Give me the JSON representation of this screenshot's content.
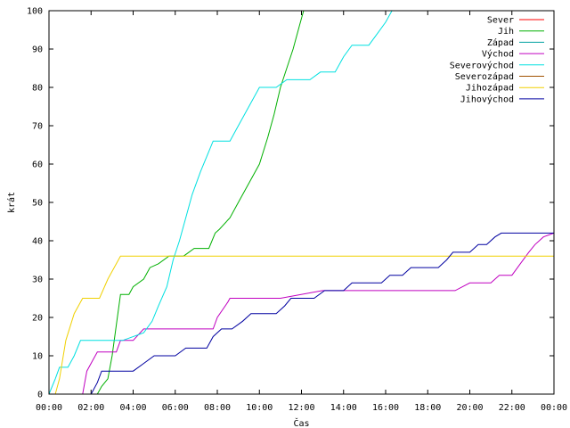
{
  "chart_data": {
    "type": "line",
    "xlabel": "Čas",
    "ylabel": "krát",
    "xlim": [
      0,
      24
    ],
    "ylim": [
      0,
      100
    ],
    "grid": false,
    "legend_position": "top-right",
    "x_ticks": [
      {
        "v": 0,
        "label": "00:00"
      },
      {
        "v": 2,
        "label": "02:00"
      },
      {
        "v": 4,
        "label": "04:00"
      },
      {
        "v": 6,
        "label": "06:00"
      },
      {
        "v": 8,
        "label": "08:00"
      },
      {
        "v": 10,
        "label": "10:00"
      },
      {
        "v": 12,
        "label": "12:00"
      },
      {
        "v": 14,
        "label": "14:00"
      },
      {
        "v": 16,
        "label": "16:00"
      },
      {
        "v": 18,
        "label": "18:00"
      },
      {
        "v": 20,
        "label": "20:00"
      },
      {
        "v": 22,
        "label": "22:00"
      },
      {
        "v": 24,
        "label": "00:00"
      }
    ],
    "y_ticks": [
      0,
      10,
      20,
      30,
      40,
      50,
      60,
      70,
      80,
      90,
      100
    ],
    "series": [
      {
        "name": "Sever",
        "color": "#ff0000",
        "points": []
      },
      {
        "name": "Jih",
        "color": "#00b000",
        "points": [
          [
            2.3,
            0
          ],
          [
            2.5,
            2
          ],
          [
            2.8,
            4
          ],
          [
            3.0,
            10
          ],
          [
            3.2,
            18
          ],
          [
            3.4,
            26
          ],
          [
            3.8,
            26
          ],
          [
            4.0,
            28
          ],
          [
            4.5,
            30
          ],
          [
            4.8,
            33
          ],
          [
            5.2,
            34
          ],
          [
            5.7,
            36
          ],
          [
            6.4,
            36
          ],
          [
            6.9,
            38
          ],
          [
            7.6,
            38
          ],
          [
            7.9,
            42
          ],
          [
            8.1,
            43
          ],
          [
            8.6,
            46
          ],
          [
            9.0,
            50
          ],
          [
            9.3,
            53
          ],
          [
            9.6,
            56
          ],
          [
            10.0,
            60
          ],
          [
            10.4,
            67
          ],
          [
            10.7,
            73
          ],
          [
            11.0,
            80
          ],
          [
            11.3,
            85
          ],
          [
            11.6,
            90
          ],
          [
            11.9,
            96
          ],
          [
            12.1,
            100
          ]
        ]
      },
      {
        "name": "Západ",
        "color": "#00a0a0",
        "points": []
      },
      {
        "name": "Východ",
        "color": "#c000c0",
        "points": [
          [
            0.0,
            0
          ],
          [
            1.6,
            0
          ],
          [
            1.8,
            6
          ],
          [
            2.1,
            9
          ],
          [
            2.3,
            11
          ],
          [
            3.2,
            11
          ],
          [
            3.4,
            14
          ],
          [
            4.0,
            14
          ],
          [
            4.5,
            17
          ],
          [
            7.8,
            17
          ],
          [
            8.0,
            20
          ],
          [
            8.5,
            24
          ],
          [
            8.6,
            25
          ],
          [
            11.0,
            25
          ],
          [
            13.0,
            27
          ],
          [
            15.0,
            27
          ],
          [
            19.3,
            27
          ],
          [
            20.0,
            29
          ],
          [
            21.0,
            29
          ],
          [
            21.4,
            31
          ],
          [
            22.0,
            31
          ],
          [
            22.4,
            34
          ],
          [
            22.8,
            37
          ],
          [
            23.1,
            39
          ],
          [
            23.5,
            41
          ],
          [
            24.0,
            42
          ]
        ]
      },
      {
        "name": "Severovýchod",
        "color": "#00e0e0",
        "points": [
          [
            0.0,
            0
          ],
          [
            0.3,
            4
          ],
          [
            0.5,
            7
          ],
          [
            0.9,
            7
          ],
          [
            1.2,
            10
          ],
          [
            1.5,
            14
          ],
          [
            3.5,
            14
          ],
          [
            4.5,
            16
          ],
          [
            4.9,
            19
          ],
          [
            5.2,
            23
          ],
          [
            5.6,
            28
          ],
          [
            5.9,
            35
          ],
          [
            6.2,
            40
          ],
          [
            6.5,
            46
          ],
          [
            6.8,
            52
          ],
          [
            7.2,
            58
          ],
          [
            7.5,
            62
          ],
          [
            7.8,
            66
          ],
          [
            8.6,
            66
          ],
          [
            9.0,
            70
          ],
          [
            9.4,
            74
          ],
          [
            9.7,
            77
          ],
          [
            10.0,
            80
          ],
          [
            10.8,
            80
          ],
          [
            11.3,
            82
          ],
          [
            12.4,
            82
          ],
          [
            12.9,
            84
          ],
          [
            13.6,
            84
          ],
          [
            14.0,
            88
          ],
          [
            14.4,
            91
          ],
          [
            15.2,
            91
          ],
          [
            15.6,
            94
          ],
          [
            16.0,
            97
          ],
          [
            16.3,
            100
          ]
        ]
      },
      {
        "name": "Severozápad",
        "color": "#a05000",
        "points": []
      },
      {
        "name": "Jihozápad",
        "color": "#f0d000",
        "points": [
          [
            0.3,
            0
          ],
          [
            0.5,
            4
          ],
          [
            0.8,
            14
          ],
          [
            1.2,
            21
          ],
          [
            1.6,
            25
          ],
          [
            2.4,
            25
          ],
          [
            2.8,
            30
          ],
          [
            3.1,
            33
          ],
          [
            3.4,
            36
          ],
          [
            24.0,
            36
          ]
        ]
      },
      {
        "name": "Jihovýchod",
        "color": "#0000a0",
        "points": [
          [
            2.0,
            0
          ],
          [
            2.3,
            3
          ],
          [
            2.5,
            6
          ],
          [
            4.0,
            6
          ],
          [
            4.5,
            8
          ],
          [
            5.0,
            10
          ],
          [
            6.0,
            10
          ],
          [
            6.5,
            12
          ],
          [
            7.5,
            12
          ],
          [
            7.8,
            15
          ],
          [
            8.2,
            17
          ],
          [
            8.7,
            17
          ],
          [
            9.2,
            19
          ],
          [
            9.6,
            21
          ],
          [
            10.8,
            21
          ],
          [
            11.2,
            23
          ],
          [
            11.5,
            25
          ],
          [
            12.6,
            25
          ],
          [
            13.1,
            27
          ],
          [
            14.0,
            27
          ],
          [
            14.4,
            29
          ],
          [
            15.8,
            29
          ],
          [
            16.2,
            31
          ],
          [
            16.8,
            31
          ],
          [
            17.2,
            33
          ],
          [
            18.5,
            33
          ],
          [
            18.9,
            35
          ],
          [
            19.2,
            37
          ],
          [
            20.0,
            37
          ],
          [
            20.4,
            39
          ],
          [
            20.8,
            39
          ],
          [
            21.2,
            41
          ],
          [
            21.5,
            42
          ],
          [
            24.0,
            42
          ]
        ]
      }
    ]
  }
}
